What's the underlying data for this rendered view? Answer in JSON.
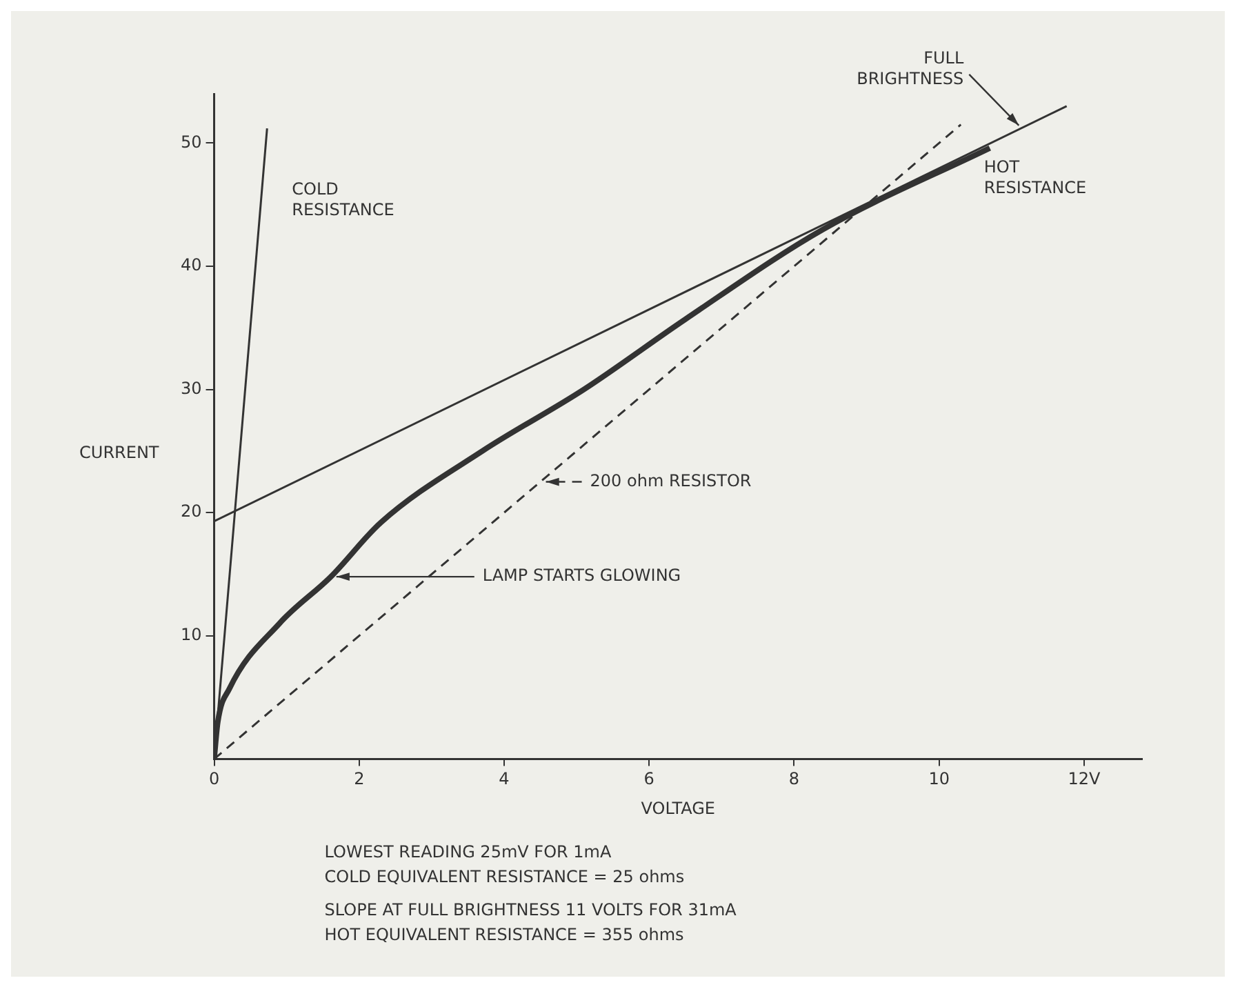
{
  "chart_data": {
    "type": "line",
    "xlabel": "VOLTAGE",
    "ylabel": "CURRENT",
    "xlim": [
      0,
      12.8
    ],
    "ylim": [
      0,
      54
    ],
    "xticks": [
      0,
      2,
      4,
      6,
      8,
      10,
      {
        "value": 12,
        "label": "12V"
      }
    ],
    "yticks": [
      10,
      20,
      30,
      40,
      50
    ],
    "marker": "none",
    "series": [
      {
        "color": "#333333",
        "x": [
          0,
          0.05,
          0.21,
          0.9,
          1.61,
          2.3,
          3.7,
          5.1,
          6.5,
          8.4,
          10.7
        ],
        "values": [
          0,
          3,
          5.7,
          11,
          14.8,
          19.2,
          25,
          30,
          35.7,
          43,
          49.6
        ]
      },
      {
        "name": "COLD RESISTANCE",
        "color": "#333333",
        "x": [
          0,
          0.73
        ],
        "values": [
          0,
          51.2
        ]
      },
      {
        "name": "HOT RESISTANCE",
        "color": "#333333",
        "x": [
          0,
          11.76
        ],
        "values": [
          19.3,
          53
        ]
      },
      {
        "name": "200 ohm RESISTOR",
        "color": "#333333",
        "line_style": "dashed",
        "x": [
          0,
          4.5,
          10.3
        ],
        "values": [
          0,
          22.5,
          51.5
        ]
      }
    ],
    "annotations": [
      {
        "text": "LAMP STARTS GLOWING",
        "x": 1.61,
        "y": 14.8
      },
      {
        "text": "FULL BRIGHTNESS",
        "x": 11.1,
        "y": 51.1
      },
      "LOWEST READING 25mV FOR 1mA",
      "COLD EQUIVALENT RESISTANCE = 25 ohms",
      "SLOPE AT FULL BRIGHTNESS 11 VOLTS FOR 31mA",
      "HOT EQUIVALENT RESISTANCE = 355 ohms"
    ]
  }
}
